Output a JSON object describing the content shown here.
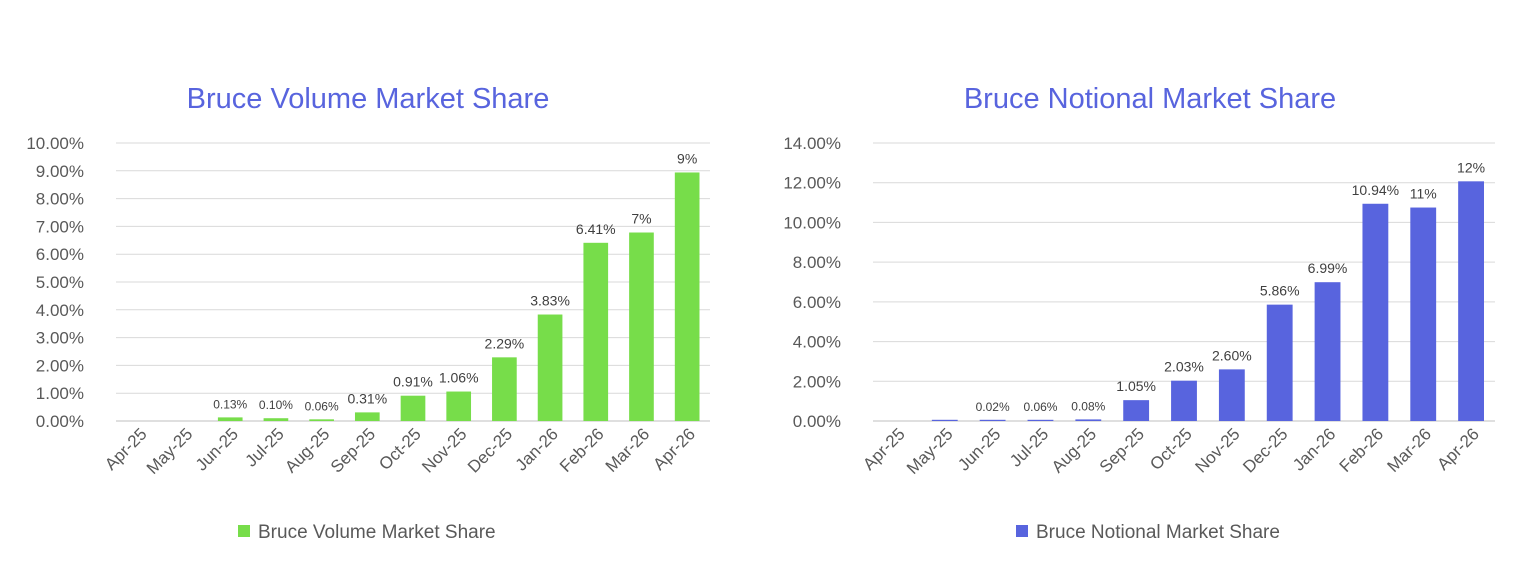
{
  "chart_data": [
    {
      "type": "bar",
      "title": "Bruce Volume Market Share",
      "xlabel": "",
      "ylabel": "",
      "ylim": [
        0,
        10
      ],
      "yticks": [
        "0.00%",
        "1.00%",
        "2.00%",
        "3.00%",
        "4.00%",
        "5.00%",
        "6.00%",
        "7.00%",
        "8.00%",
        "9.00%",
        "10.00%"
      ],
      "grid": true,
      "legend_position": "bottom",
      "color": "#77dd4a",
      "categories": [
        "Apr-25",
        "May-25",
        "Jun-25",
        "Jul-25",
        "Aug-25",
        "Sep-25",
        "Oct-25",
        "Nov-25",
        "Dec-25",
        "Jan-26",
        "Feb-26",
        "Mar-26",
        "Apr-26"
      ],
      "series": [
        {
          "name": "Bruce Volume Market Share",
          "values": [
            0,
            0,
            0.13,
            0.1,
            0.06,
            0.31,
            0.91,
            1.06,
            2.29,
            3.83,
            6.41,
            6.78,
            8.94
          ],
          "labels": [
            "",
            "",
            "0.13%",
            "0.10%",
            "0.06%",
            "0.31%",
            "0.91%",
            "1.06%",
            "2.29%",
            "3.83%",
            "6.41%",
            "7%",
            "9%"
          ]
        }
      ]
    },
    {
      "type": "bar",
      "title": "Bruce Notional Market Share",
      "xlabel": "",
      "ylabel": "",
      "ylim": [
        0,
        14
      ],
      "yticks": [
        "0.00%",
        "2.00%",
        "4.00%",
        "6.00%",
        "8.00%",
        "10.00%",
        "12.00%",
        "14.00%"
      ],
      "grid": true,
      "legend_position": "bottom",
      "color": "#5864de",
      "categories": [
        "Apr-25",
        "May-25",
        "Jun-25",
        "Jul-25",
        "Aug-25",
        "Sep-25",
        "Oct-25",
        "Nov-25",
        "Dec-25",
        "Jan-26",
        "Feb-26",
        "Mar-26",
        "Apr-26"
      ],
      "series": [
        {
          "name": "Bruce Notional Market Share",
          "values": [
            0,
            0.01,
            0.02,
            0.06,
            0.08,
            1.05,
            2.03,
            2.6,
            5.86,
            6.99,
            10.94,
            10.75,
            12.07
          ],
          "labels": [
            "",
            "",
            "0.02%",
            "0.06%",
            "0.08%",
            "1.05%",
            "2.03%",
            "2.60%",
            "5.86%",
            "6.99%",
            "10.94%",
            "11%",
            "12%"
          ]
        }
      ]
    }
  ]
}
